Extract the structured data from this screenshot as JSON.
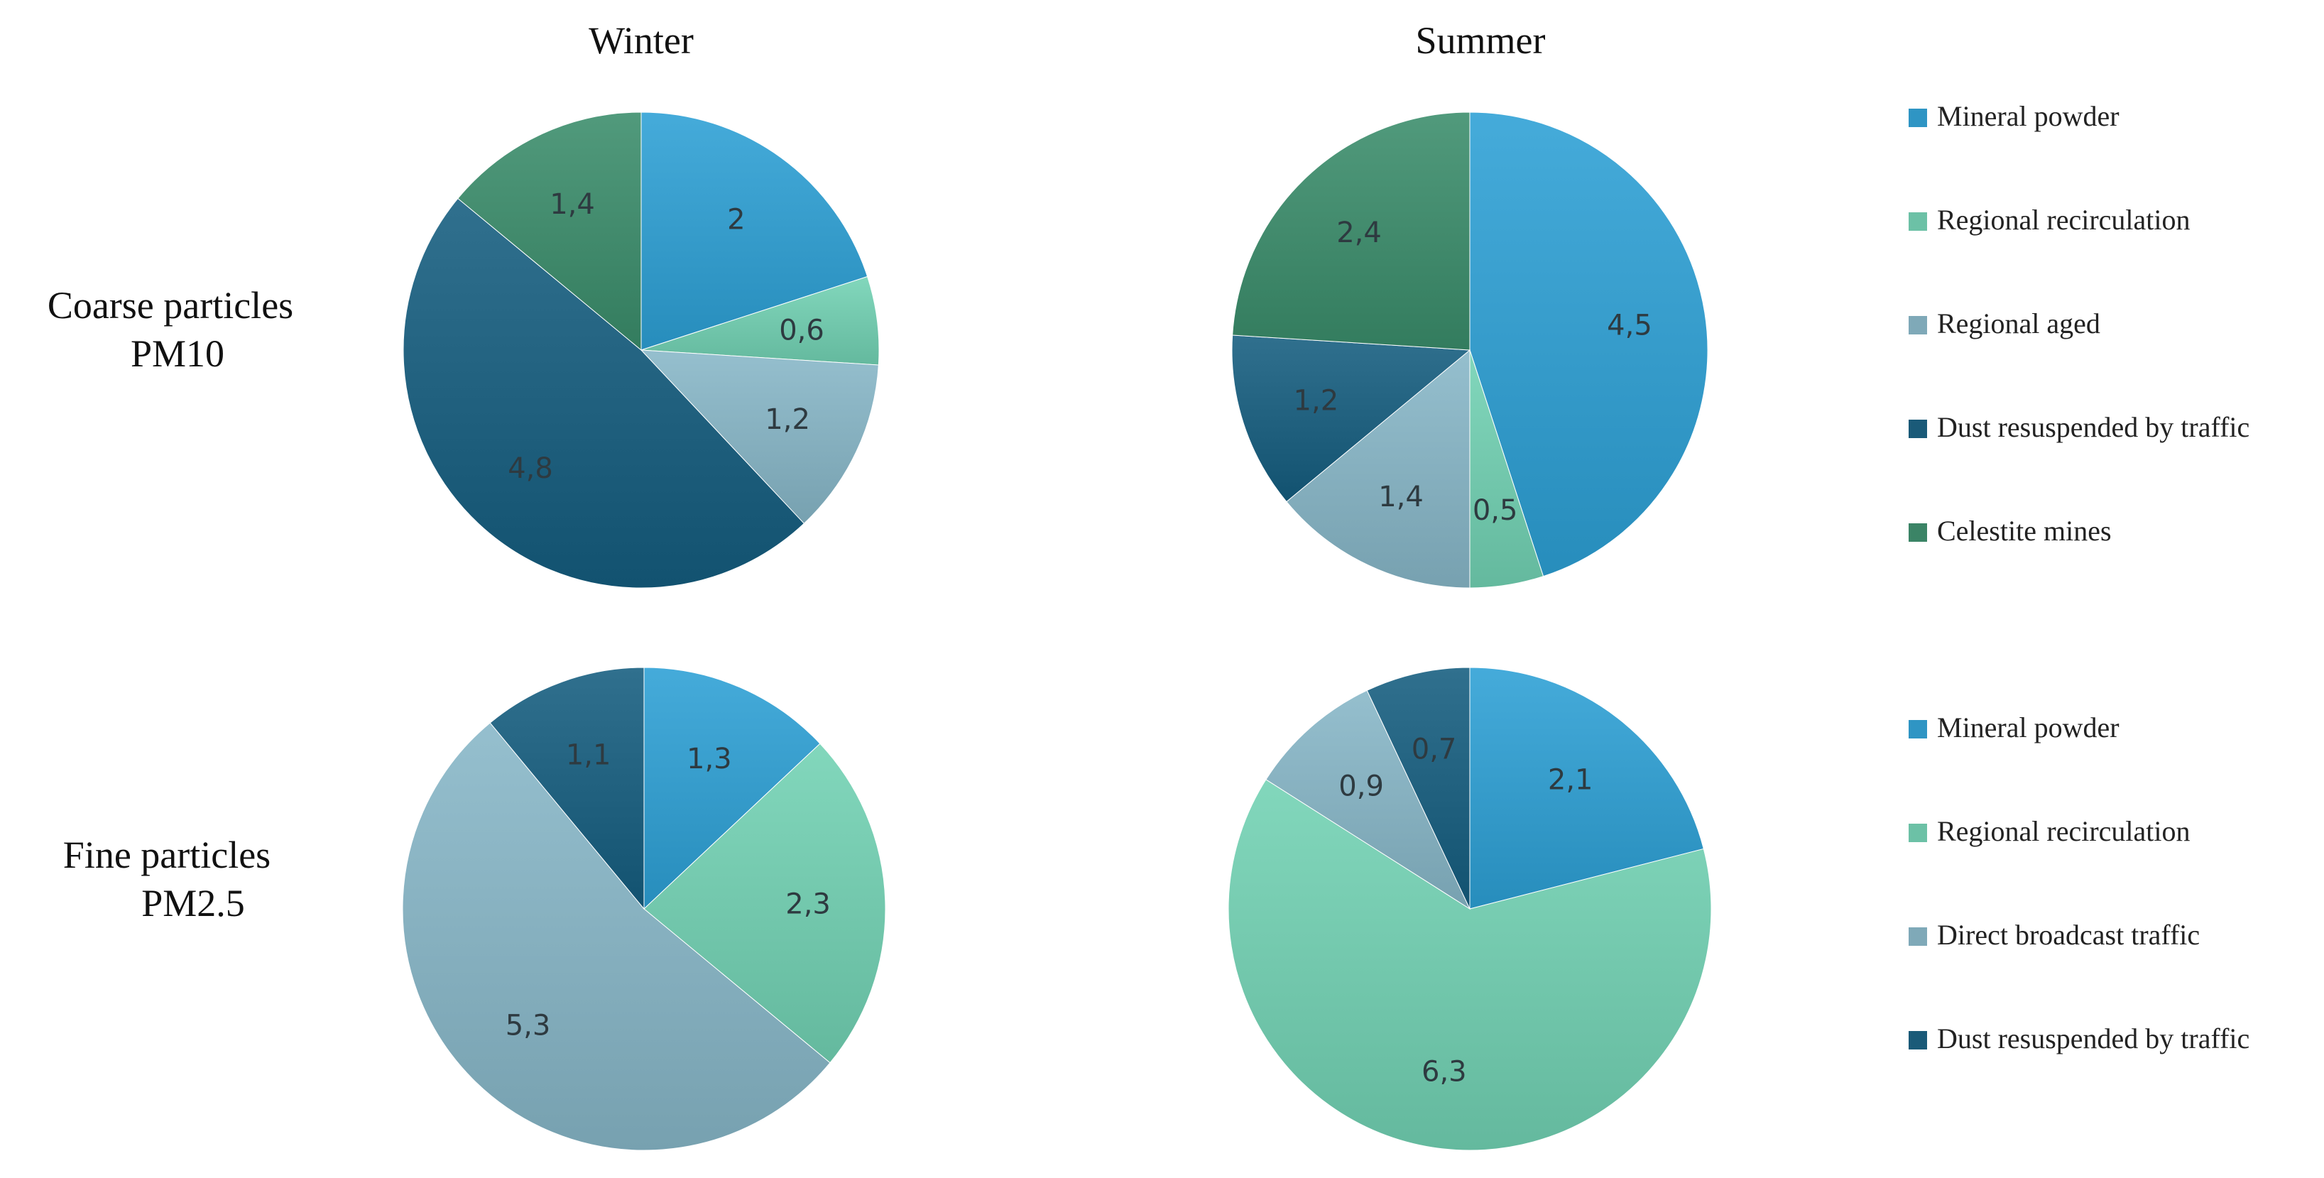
{
  "column_titles": [
    "Winter",
    "Summer"
  ],
  "row_titles": [
    [
      "Coarse particles",
      "PM10"
    ],
    [
      "Fine particles",
      "PM2.5"
    ]
  ],
  "colors": {
    "Mineral powder": "#2f95c4",
    "Regional recirculation": "#6cc1a6",
    "Regional aged": "#7fa9b8",
    "Direct broadcast traffic": "#7fa9b8",
    "Dust resuspended by traffic": "#1a5a78",
    "Celestite mines": "#3b8466"
  },
  "legends": [
    [
      "Mineral powder",
      "Regional recirculation",
      "Regional aged",
      "Dust resuspended by traffic",
      "Celestite mines"
    ],
    [
      "Mineral powder",
      "Regional recirculation",
      "Direct broadcast traffic",
      "Dust resuspended by traffic"
    ]
  ],
  "chart_data": [
    {
      "type": "pie",
      "title": "",
      "season": "Winter",
      "fraction": "Coarse particles PM10",
      "labels": [
        "Mineral powder",
        "Regional recirculation",
        "Regional aged",
        "Dust resuspended by traffic",
        "Celestite mines"
      ],
      "values": [
        2,
        0.6,
        1.2,
        4.8,
        1.4
      ],
      "value_labels": [
        "2",
        "0,6",
        "1,2",
        "4,8",
        "1,4"
      ]
    },
    {
      "type": "pie",
      "title": "",
      "season": "Summer",
      "fraction": "Coarse particles PM10",
      "labels": [
        "Mineral powder",
        "Regional recirculation",
        "Regional aged",
        "Dust resuspended by traffic",
        "Celestite mines"
      ],
      "values": [
        4.5,
        0.5,
        1.4,
        1.2,
        2.4
      ],
      "value_labels": [
        "4,5",
        "0,5",
        "1,4",
        "1,2",
        "2,4"
      ]
    },
    {
      "type": "pie",
      "title": "",
      "season": "Winter",
      "fraction": "Fine particles PM2.5",
      "labels": [
        "Mineral powder",
        "Regional recirculation",
        "Direct broadcast traffic",
        "Dust resuspended by traffic"
      ],
      "values": [
        1.3,
        2.3,
        5.3,
        1.1
      ],
      "value_labels": [
        "1,3",
        "2,3",
        "5,3",
        "1,1"
      ]
    },
    {
      "type": "pie",
      "title": "",
      "season": "Summer",
      "fraction": "Fine particles PM2.5",
      "labels": [
        "Mineral powder",
        "Regional recirculation",
        "Direct broadcast traffic",
        "Dust resuspended by traffic"
      ],
      "values": [
        2.1,
        6.3,
        0.9,
        0.7
      ],
      "value_labels": [
        "2,1",
        "6,3",
        "0,9",
        "0,7"
      ]
    }
  ]
}
